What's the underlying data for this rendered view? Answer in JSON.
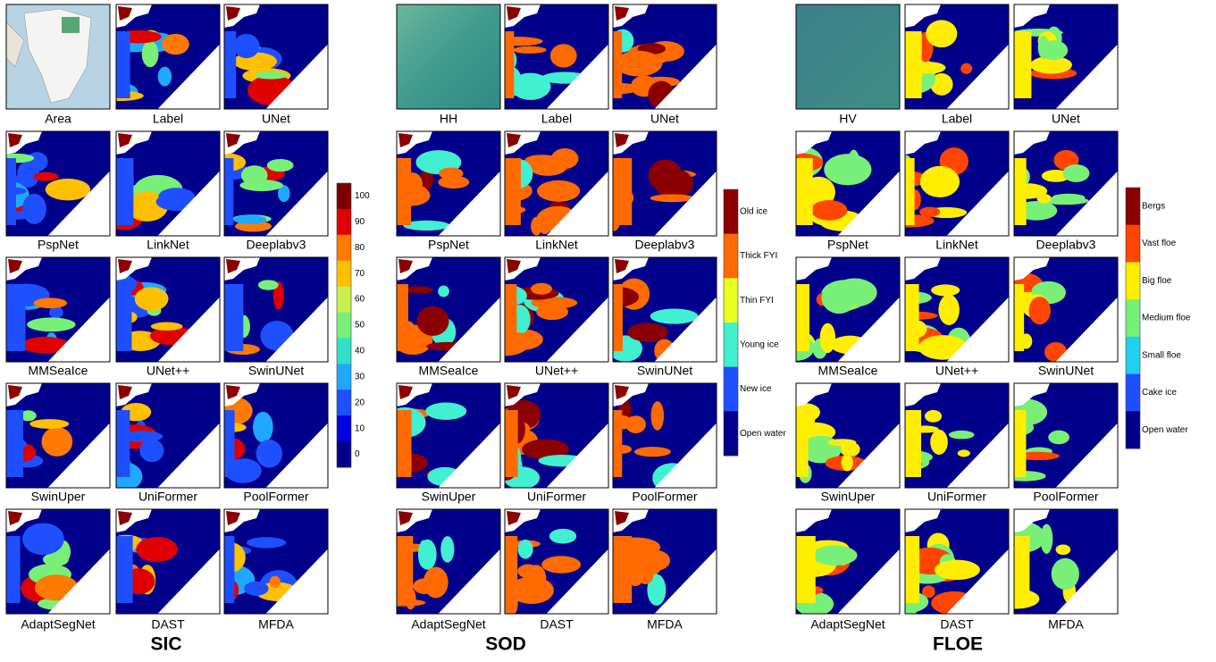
{
  "groups": [
    {
      "title": "SIC",
      "panels": [
        "Area",
        "Label",
        "UNet",
        "PspNet",
        "LinkNet",
        "Deeplabv3",
        "MMSeaIce",
        "UNet++",
        "SwinUNet",
        "SwinUper",
        "UniFormer",
        "PoolFormer",
        "AdaptSegNet",
        "DAST",
        "MFDA"
      ],
      "legend": [
        {
          "label": "100",
          "color": "#7f0000"
        },
        {
          "label": "90",
          "color": "#e00000"
        },
        {
          "label": "80",
          "color": "#ff7a00"
        },
        {
          "label": "70",
          "color": "#ffc000"
        },
        {
          "label": "60",
          "color": "#c8f050"
        },
        {
          "label": "50",
          "color": "#78f078"
        },
        {
          "label": "40",
          "color": "#30e0c8"
        },
        {
          "label": "30",
          "color": "#20a8ff"
        },
        {
          "label": "20",
          "color": "#1e50ff"
        },
        {
          "label": "10",
          "color": "#0000e0"
        },
        {
          "label": "0",
          "color": "#00008b"
        }
      ]
    },
    {
      "title": "SOD",
      "panels": [
        "HH",
        "Label",
        "UNet",
        "PspNet",
        "LinkNet",
        "Deeplabv3",
        "MMSeaIce",
        "UNet++",
        "SwinUNet",
        "SwinUper",
        "UniFormer",
        "PoolFormer",
        "AdaptSegNet",
        "DAST",
        "MFDA"
      ],
      "legend": [
        {
          "label": "Old ice",
          "color": "#8b0000"
        },
        {
          "label": "Thick FYI",
          "color": "#ff6a00"
        },
        {
          "label": "Thin FYI",
          "color": "#e8ff20"
        },
        {
          "label": "Young ice",
          "color": "#40f0d0"
        },
        {
          "label": "New ice",
          "color": "#1e50ff"
        },
        {
          "label": "Open water",
          "color": "#00008b"
        }
      ]
    },
    {
      "title": "FLOE",
      "panels": [
        "HV",
        "Label",
        "UNet",
        "PspNet",
        "LinkNet",
        "Deeplabv3",
        "MMSeaIce",
        "UNet++",
        "SwinUNet",
        "SwinUper",
        "UniFormer",
        "PoolFormer",
        "AdaptSegNet",
        "DAST",
        "MFDA"
      ],
      "legend": [
        {
          "label": "Bergs",
          "color": "#8b0000"
        },
        {
          "label": "Vast floe",
          "color": "#ff4500"
        },
        {
          "label": "Big floe",
          "color": "#ffee00"
        },
        {
          "label": "Medium floe",
          "color": "#78f078"
        },
        {
          "label": "Small floe",
          "color": "#20d0f0"
        },
        {
          "label": "Cake ice",
          "color": "#1e50ff"
        },
        {
          "label": "Open water",
          "color": "#00008b"
        }
      ]
    }
  ]
}
